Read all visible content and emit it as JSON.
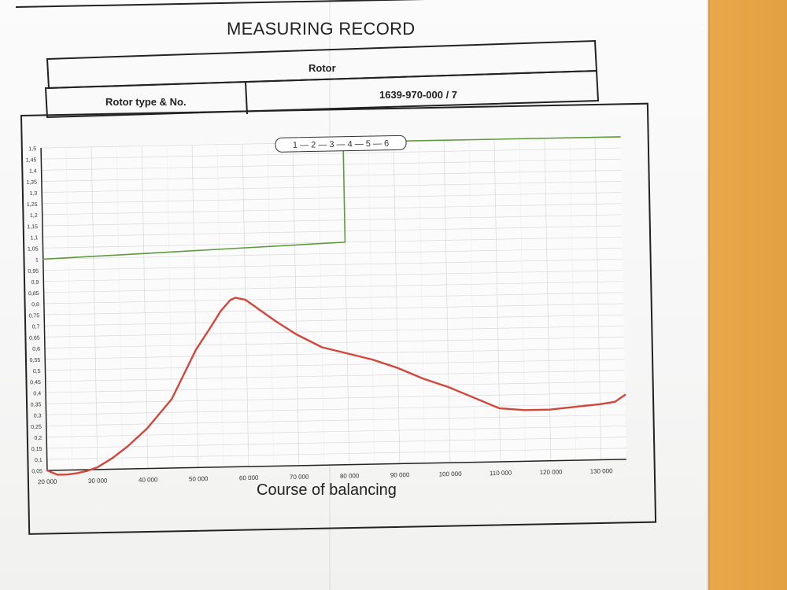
{
  "document": {
    "title": "MEASURING RECORD",
    "header_row": "Rotor",
    "rotor_type_label": "Rotor type & No.",
    "rotor_type_value": "1639-970-000 / 7"
  },
  "chart_data": {
    "type": "line",
    "xlabel": "Course of balancing",
    "xlim": [
      20000,
      135000
    ],
    "ylim": [
      0.05,
      1.5
    ],
    "x_ticks": [
      "20 000",
      "30 000",
      "40 000",
      "50 000",
      "60 000",
      "70 000",
      "80 000",
      "90 000",
      "100 000",
      "110 000",
      "120 000",
      "130 000"
    ],
    "y_ticks": [
      "0,05",
      "0,1",
      "0,15",
      "0,2",
      "0,25",
      "0,3",
      "0,35",
      "0,4",
      "0,45",
      "0,5",
      "0,55",
      "0,6",
      "0,65",
      "0,7",
      "0,75",
      "0,8",
      "0,85",
      "0,9",
      "0,95",
      "1",
      "1,05",
      "1,1",
      "1,15",
      "1,2",
      "1,25",
      "1,3",
      "1,35",
      "1,4",
      "1,45",
      "1,5"
    ],
    "grid": true,
    "legend": {
      "text": "1 — 2 — 3 — 4 — 5 — 6",
      "placement": "top-center"
    },
    "colors": {
      "series1": "#d2473b",
      "series2": "#5e9a3c"
    },
    "series": [
      {
        "color": "#d2473b",
        "x": [
          20000,
          22000,
          24000,
          26000,
          28000,
          30000,
          33000,
          36000,
          40000,
          45000,
          50000,
          53000,
          55000,
          57000,
          58000,
          60000,
          63000,
          66000,
          70000,
          75000,
          80000,
          85000,
          90000,
          95000,
          100000,
          105000,
          110000,
          115000,
          120000,
          125000,
          130000,
          133000,
          135000
        ],
        "y": [
          0.05,
          0.03,
          0.03,
          0.035,
          0.045,
          0.06,
          0.1,
          0.15,
          0.23,
          0.36,
          0.58,
          0.68,
          0.75,
          0.8,
          0.81,
          0.8,
          0.75,
          0.7,
          0.64,
          0.58,
          0.55,
          0.52,
          0.48,
          0.43,
          0.39,
          0.34,
          0.29,
          0.28,
          0.28,
          0.29,
          0.3,
          0.31,
          0.34
        ]
      },
      {
        "color": "#5e9a3c",
        "x": [
          20000,
          80000,
          80000,
          135000
        ],
        "y": [
          1.0,
          1.05,
          1.5,
          1.5
        ]
      }
    ]
  }
}
